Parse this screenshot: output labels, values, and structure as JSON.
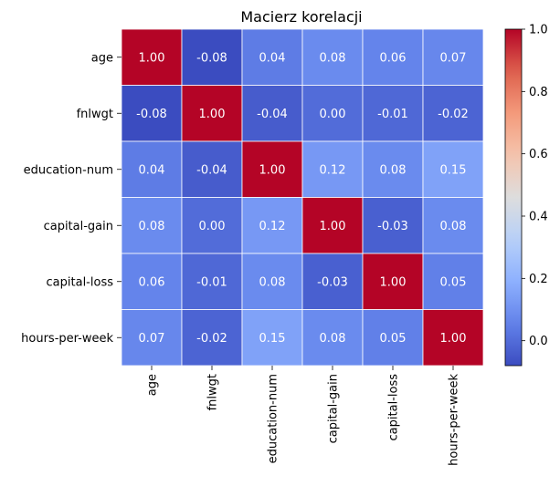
{
  "chart_data": {
    "type": "heatmap",
    "title": "Macierz korelacji",
    "xlabel": "",
    "ylabel": "",
    "row_labels": [
      "age",
      "fnlwgt",
      "education-num",
      "capital-gain",
      "capital-loss",
      "hours-per-week"
    ],
    "col_labels": [
      "age",
      "fnlwgt",
      "education-num",
      "capital-gain",
      "capital-loss",
      "hours-per-week"
    ],
    "values": [
      [
        1.0,
        -0.08,
        0.04,
        0.08,
        0.06,
        0.07
      ],
      [
        -0.08,
        1.0,
        -0.04,
        0.0,
        -0.01,
        -0.02
      ],
      [
        0.04,
        -0.04,
        1.0,
        0.12,
        0.08,
        0.15
      ],
      [
        0.08,
        0.0,
        0.12,
        1.0,
        -0.03,
        0.08
      ],
      [
        0.06,
        -0.01,
        0.08,
        -0.03,
        1.0,
        0.05
      ],
      [
        0.07,
        -0.02,
        0.15,
        0.08,
        0.05,
        1.0
      ]
    ],
    "value_format": "2 decimals",
    "colormap": "coolwarm",
    "vmin": -0.08,
    "vmax": 1.0,
    "colorbar": {
      "ticks": [
        0.0,
        0.2,
        0.4,
        0.6,
        0.8,
        1.0
      ],
      "tick_labels": [
        "0.0",
        "0.2",
        "0.4",
        "0.6",
        "0.8",
        "1.0"
      ]
    },
    "grid": false,
    "cell_border_color": "#ffffff"
  }
}
